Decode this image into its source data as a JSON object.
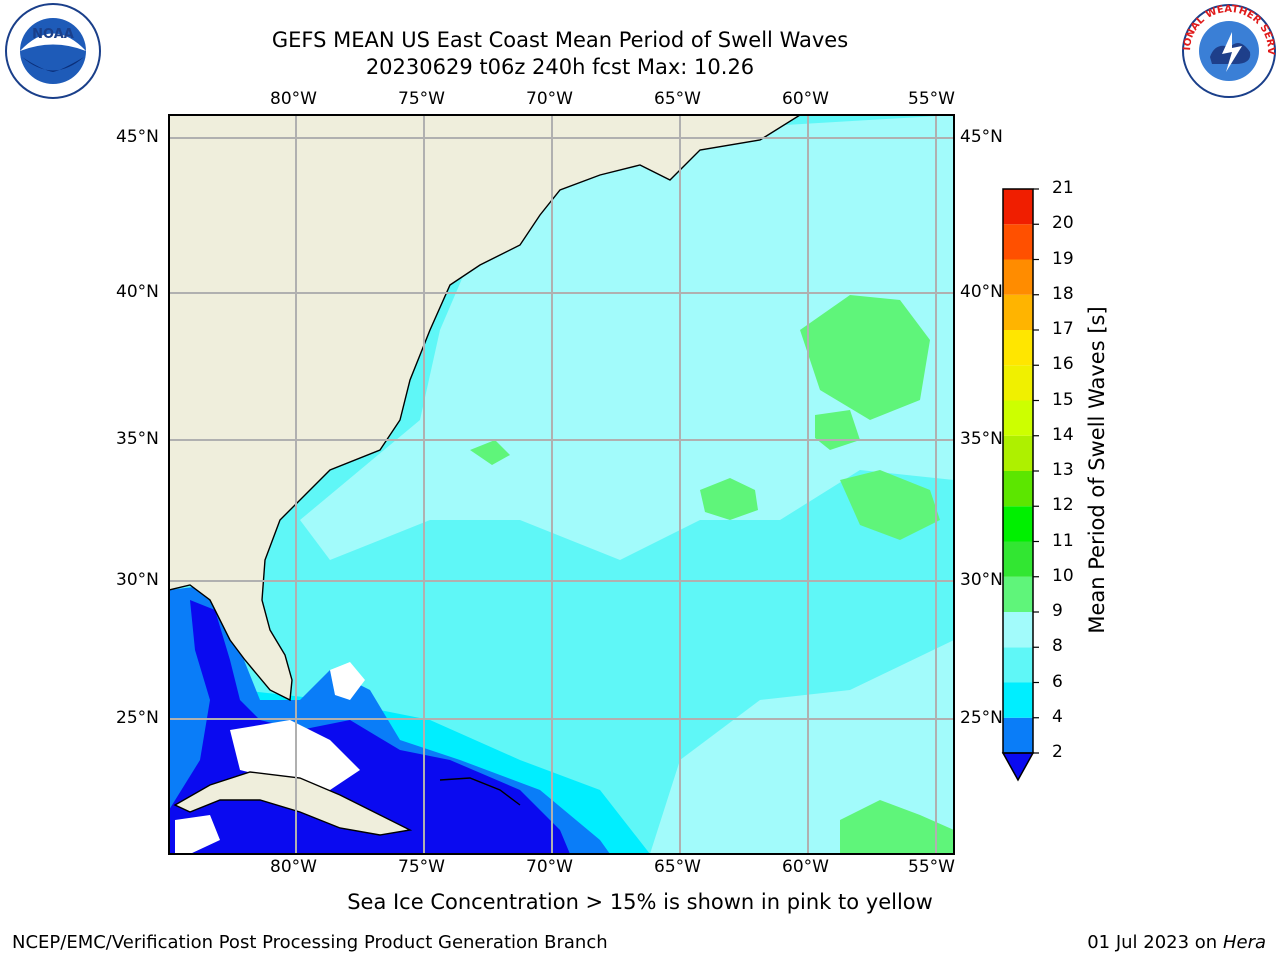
{
  "header": {
    "title_line1": "GEFS MEAN US East Coast Mean Period of Swell Waves",
    "title_line2": "20230629 t06z 240h fcst   Max: 10.26"
  },
  "logos": {
    "left": "NOAA",
    "right": "NATIONAL WEATHER SERVICE"
  },
  "map": {
    "lon_labels": [
      "80°W",
      "75°W",
      "70°W",
      "65°W",
      "60°W",
      "55°W"
    ],
    "lat_labels": [
      "45°N",
      "40°N",
      "35°N",
      "30°N",
      "25°N"
    ],
    "colors": {
      "land": "#efeedc",
      "no_data": "#ffffff",
      "grid": "#b0b0b0"
    }
  },
  "colorbar": {
    "label": "Mean Period of Swell Waves [s]",
    "ticks": [
      "2",
      "4",
      "6",
      "8",
      "9",
      "10",
      "11",
      "12",
      "13",
      "14",
      "15",
      "16",
      "17",
      "18",
      "19",
      "20",
      "21"
    ],
    "colors": [
      "#0a0af0",
      "#0a7df8",
      "#00eeff",
      "#5ff7f7",
      "#a2fbfb",
      "#5ff57a",
      "#32e632",
      "#00f000",
      "#5ce600",
      "#aef000",
      "#cdff00",
      "#f0f000",
      "#ffe600",
      "#ffb400",
      "#ff8c00",
      "#ff5000",
      "#f01e00",
      "#ff0000"
    ]
  },
  "footer": {
    "note": "Sea Ice Concentration > 15% is shown in pink to yellow",
    "credit": "NCEP/EMC/Verification Post Processing Product Generation Branch",
    "date": "01 Jul 2023 on ",
    "host": "Hera"
  }
}
